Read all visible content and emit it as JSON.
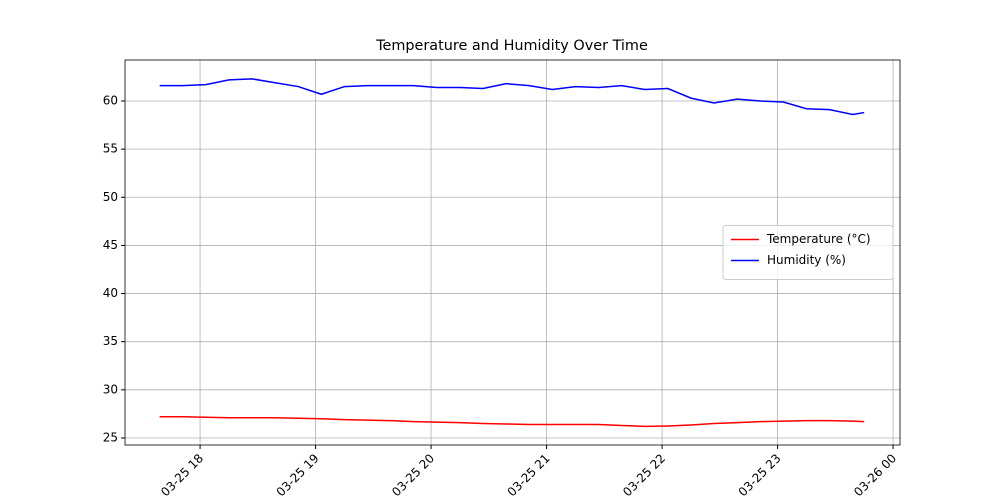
{
  "chart_data": {
    "type": "line",
    "title": "Temperature and Humidity Over Time",
    "x": [
      17.65,
      17.85,
      18.05,
      18.25,
      18.45,
      18.65,
      18.85,
      19.05,
      19.25,
      19.45,
      19.65,
      19.85,
      20.05,
      20.25,
      20.45,
      20.65,
      20.85,
      21.05,
      21.25,
      21.45,
      21.65,
      21.85,
      22.05,
      22.25,
      22.45,
      22.65,
      22.85,
      23.05,
      23.25,
      23.45,
      23.65,
      23.75
    ],
    "series": [
      {
        "name": "Temperature (°C)",
        "color": "#ff0000",
        "values": [
          27.2,
          27.2,
          27.15,
          27.1,
          27.1,
          27.1,
          27.05,
          27.0,
          26.9,
          26.85,
          26.8,
          26.7,
          26.65,
          26.6,
          26.5,
          26.45,
          26.4,
          26.4,
          26.4,
          26.4,
          26.3,
          26.2,
          26.25,
          26.35,
          26.5,
          26.6,
          26.7,
          26.75,
          26.8,
          26.8,
          26.75,
          26.7
        ]
      },
      {
        "name": "Humidity (%)",
        "color": "#0000ff",
        "values": [
          61.6,
          61.6,
          61.7,
          62.2,
          62.3,
          61.9,
          61.5,
          60.7,
          61.5,
          61.6,
          61.6,
          61.6,
          61.4,
          61.4,
          61.3,
          61.8,
          61.6,
          61.2,
          61.5,
          61.4,
          61.6,
          61.2,
          61.3,
          60.3,
          59.8,
          60.2,
          60.0,
          59.9,
          59.2,
          59.1,
          58.6,
          58.8
        ]
      }
    ],
    "xlim": [
      17.35,
      24.06
    ],
    "xticks": [
      {
        "value": 18,
        "label": "03-25 18"
      },
      {
        "value": 19,
        "label": "03-25 19"
      },
      {
        "value": 20,
        "label": "03-25 20"
      },
      {
        "value": 21,
        "label": "03-25 21"
      },
      {
        "value": 22,
        "label": "03-25 22"
      },
      {
        "value": 23,
        "label": "03-25 23"
      },
      {
        "value": 24,
        "label": "03-26 00"
      }
    ],
    "ylim": [
      24.27,
      64.26
    ],
    "yticks": [
      25,
      30,
      35,
      40,
      45,
      50,
      55,
      60
    ],
    "grid": true,
    "legend": "center right"
  }
}
